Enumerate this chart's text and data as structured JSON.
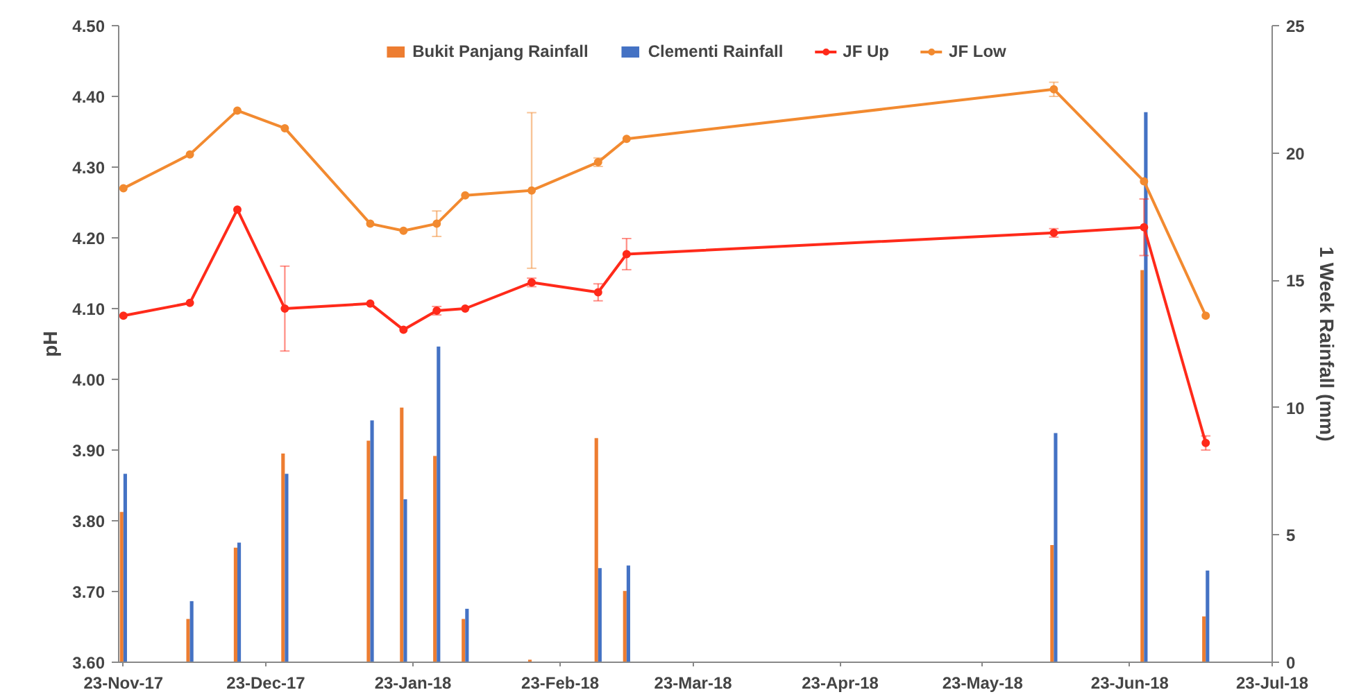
{
  "chart_data": {
    "type": "line",
    "x": [
      "2017-11-23",
      "2017-12-07",
      "2017-12-17",
      "2017-12-27",
      "2018-01-14",
      "2018-01-21",
      "2018-01-28",
      "2018-02-03",
      "2018-02-17",
      "2018-03-03",
      "2018-03-09",
      "2018-06-07",
      "2018-06-26",
      "2018-07-09"
    ],
    "series": [
      {
        "name": "Bukit Panjang Rainfall",
        "type": "bar",
        "axis": "y2",
        "color": "#ed7d31",
        "values": [
          5.9,
          1.7,
          4.5,
          8.2,
          8.7,
          10.0,
          8.1,
          1.7,
          0.1,
          8.8,
          2.8,
          4.6,
          15.4,
          1.8
        ]
      },
      {
        "name": "Clementi Rainfall",
        "type": "bar",
        "axis": "y2",
        "color": "#4472c4",
        "values": [
          7.4,
          2.4,
          4.7,
          7.4,
          9.5,
          6.4,
          12.4,
          2.1,
          0,
          3.7,
          3.8,
          9.0,
          21.6,
          3.6
        ]
      },
      {
        "name": "JF Up",
        "color": "#ff2a1a",
        "values": [
          4.09,
          4.108,
          4.24,
          4.1,
          4.107,
          4.07,
          4.097,
          4.1,
          4.137,
          4.123,
          4.177,
          4.207,
          4.215,
          3.91
        ],
        "errors": [
          null,
          null,
          null,
          0.06,
          null,
          null,
          0.006,
          null,
          0.006,
          0.012,
          0.022,
          0.006,
          0.04,
          0.01
        ]
      },
      {
        "name": "JF Low",
        "color": "#f28a30",
        "values": [
          4.27,
          4.318,
          4.38,
          4.355,
          4.22,
          4.21,
          4.22,
          4.26,
          4.267,
          4.307,
          4.34,
          4.41,
          4.28,
          4.09
        ],
        "errors": [
          null,
          null,
          null,
          null,
          null,
          null,
          0.018,
          null,
          0.11,
          0.006,
          null,
          0.01,
          null,
          null
        ]
      }
    ],
    "xlim": [
      "2017-11-22",
      "2018-07-23"
    ],
    "xticks": [
      {
        "value": "2017-11-23",
        "label": "23-Nov-17"
      },
      {
        "value": "2017-12-23",
        "label": "23-Dec-17"
      },
      {
        "value": "2018-01-23",
        "label": "23-Jan-18"
      },
      {
        "value": "2018-02-23",
        "label": "23-Feb-18"
      },
      {
        "value": "2018-03-23",
        "label": "23-Mar-18"
      },
      {
        "value": "2018-04-23",
        "label": "23-Apr-18"
      },
      {
        "value": "2018-05-23",
        "label": "23-May-18"
      },
      {
        "value": "2018-06-23",
        "label": "23-Jun-18"
      },
      {
        "value": "2018-07-23",
        "label": "23-Jul-18"
      }
    ],
    "ylim": [
      3.6,
      4.5
    ],
    "yticks": [
      {
        "value": 3.6,
        "label": "3.60"
      },
      {
        "value": 3.7,
        "label": "3.70"
      },
      {
        "value": 3.8,
        "label": "3.80"
      },
      {
        "value": 3.9,
        "label": "3.90"
      },
      {
        "value": 4.0,
        "label": "4.00"
      },
      {
        "value": 4.1,
        "label": "4.10"
      },
      {
        "value": 4.2,
        "label": "4.20"
      },
      {
        "value": 4.3,
        "label": "4.30"
      },
      {
        "value": 4.4,
        "label": "4.40"
      },
      {
        "value": 4.5,
        "label": "4.50"
      }
    ],
    "y2lim": [
      0,
      25
    ],
    "y2ticks": [
      0,
      5,
      10,
      15,
      20,
      25
    ],
    "ylabel": "pH",
    "y2label": "1 Week Rainfall (mm)",
    "legend": "top",
    "grid": false,
    "marker": "circle"
  }
}
